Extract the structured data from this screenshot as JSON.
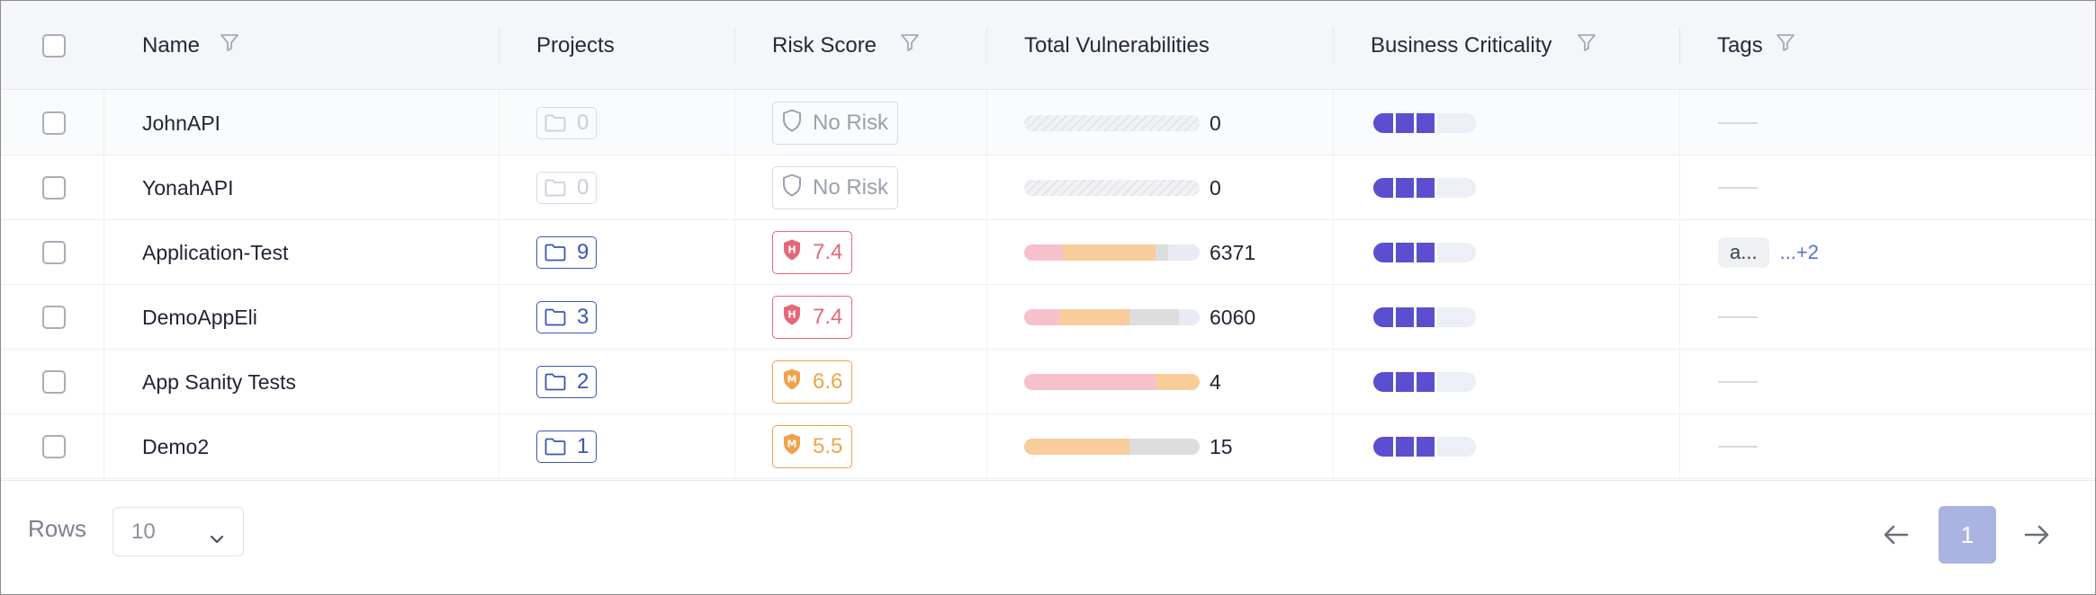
{
  "header": {
    "name": "Name",
    "projects": "Projects",
    "risk_score": "Risk Score",
    "total_vulnerabilities": "Total Vulnerabilities",
    "business_criticality": "Business Criticality",
    "tags": "Tags"
  },
  "icons": {
    "filter": "filter-icon",
    "folder": "folder-icon",
    "shield": "shield-icon",
    "chevron": "chevron-down-icon",
    "prev": "arrow-left-icon",
    "next": "arrow-right-icon"
  },
  "colors": {
    "critical": "#f6c1cc",
    "high": "#f8cc9b",
    "medium": "#dddddd",
    "low": "#e8eaf4",
    "criticality": "#5b4fcf",
    "risk_high": "#e5677a",
    "risk_medium": "#f0a24a",
    "accent": "#3b55b4"
  },
  "rows": [
    {
      "name": "JohnAPI",
      "projects": "0",
      "risk_label": "No Risk",
      "risk_level": "none",
      "risk_letter": "",
      "vuln_total": "0",
      "vuln_fractions": [],
      "criticality": 3,
      "tags": [],
      "tags_more": ""
    },
    {
      "name": "YonahAPI",
      "projects": "0",
      "risk_label": "No Risk",
      "risk_level": "none",
      "risk_letter": "",
      "vuln_total": "0",
      "vuln_fractions": [],
      "criticality": 3,
      "tags": [],
      "tags_more": ""
    },
    {
      "name": "Application-Test",
      "projects": "9",
      "risk_label": "7.4",
      "risk_level": "high",
      "risk_letter": "H",
      "vuln_total": "6371",
      "vuln_fractions": [
        0.22,
        0.53,
        0.07,
        0.18
      ],
      "criticality": 3,
      "tags": [
        "a..."
      ],
      "tags_more": "...+2"
    },
    {
      "name": "DemoAppEli",
      "projects": "3",
      "risk_label": "7.4",
      "risk_level": "high",
      "risk_letter": "H",
      "vuln_total": "6060",
      "vuln_fractions": [
        0.2,
        0.4,
        0.28,
        0.12
      ],
      "criticality": 3,
      "tags": [],
      "tags_more": ""
    },
    {
      "name": "App Sanity Tests",
      "projects": "2",
      "risk_label": "6.6",
      "risk_level": "med",
      "risk_letter": "M",
      "vuln_total": "4",
      "vuln_fractions": [
        0.75,
        0.25,
        0,
        0
      ],
      "criticality": 3,
      "tags": [],
      "tags_more": ""
    },
    {
      "name": "Demo2",
      "projects": "1",
      "risk_label": "5.5",
      "risk_level": "med",
      "risk_letter": "M",
      "vuln_total": "15",
      "vuln_fractions": [
        0,
        0.6,
        0.4,
        0
      ],
      "criticality": 3,
      "tags": [],
      "tags_more": ""
    }
  ],
  "footer": {
    "rows_label": "Rows",
    "rows_value": "10",
    "current_page": "1"
  }
}
